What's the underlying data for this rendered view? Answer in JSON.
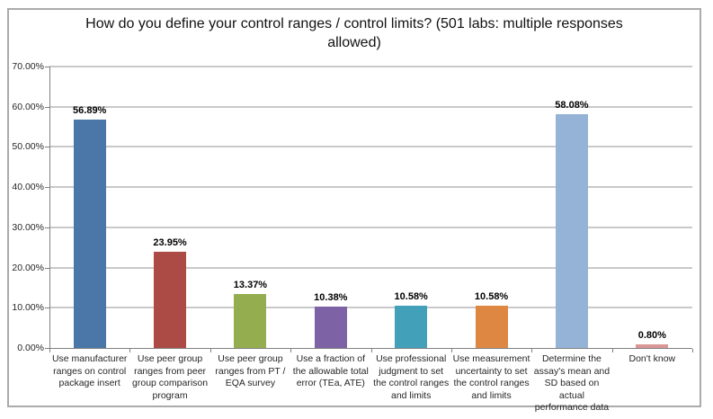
{
  "chart_data": {
    "type": "bar",
    "title": "How do you define your control ranges / control limits? (501 labs: multiple responses allowed)",
    "categories": [
      "Use manufacturer ranges on control package insert",
      "Use peer group ranges from peer group comparison program",
      "Use peer group ranges from PT / EQA survey",
      "Use a fraction of the allowable total error (TEa, ATE)",
      "Use professional judgment to set the control ranges and limits",
      "Use measurement uncertainty to set the control ranges and limits",
      "Determine the assay's mean and SD based on actual performance data",
      "Don't know"
    ],
    "values": [
      56.89,
      23.95,
      13.37,
      10.38,
      10.58,
      10.58,
      58.08,
      0.8
    ],
    "value_labels": [
      "56.89%",
      "23.95%",
      "13.37%",
      "10.38%",
      "10.58%",
      "10.58%",
      "58.08%",
      "0.80%"
    ],
    "bar_colors": [
      "#4A77A8",
      "#AC4A45",
      "#94AE4F",
      "#7D63A5",
      "#42A0B8",
      "#DE8742",
      "#95B3D7",
      "#D99694"
    ],
    "ylim": [
      0,
      70
    ],
    "y_tick_step": 10,
    "y_tick_labels": [
      "0.00%",
      "10.00%",
      "20.00%",
      "30.00%",
      "40.00%",
      "50.00%",
      "60.00%",
      "70.00%"
    ],
    "grid": true,
    "legend": "none",
    "xlabel": "",
    "ylabel": ""
  },
  "colors": {
    "grid": "#C9C9C9",
    "axis": "#808080",
    "frame_border": "#ABABAB",
    "background": "#FFFFFF"
  }
}
